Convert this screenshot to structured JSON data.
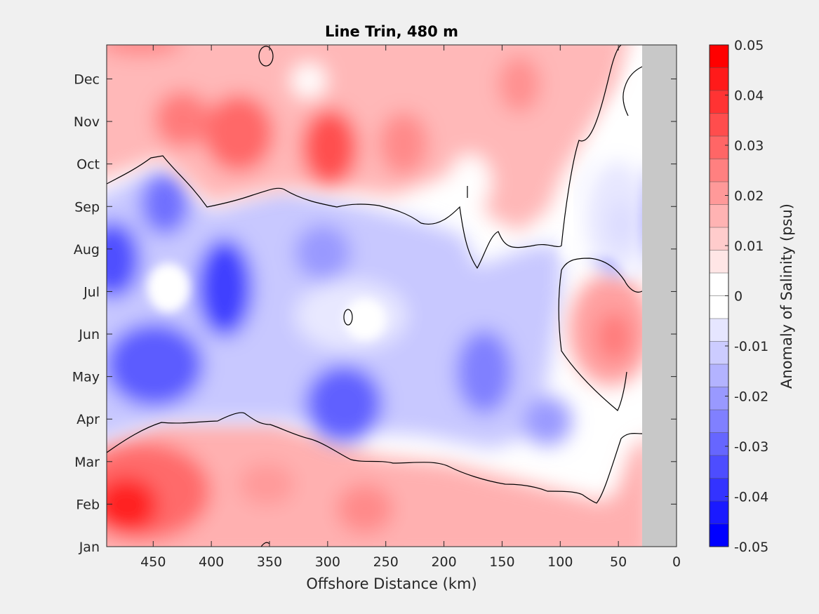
{
  "chart_data": {
    "type": "heatmap",
    "subtype": "filled-contour",
    "title": "Line Trin, 480 m",
    "xlabel": "Offshore Distance (km)",
    "ylabel": "",
    "x_reversed": true,
    "xlim": [
      490,
      0
    ],
    "xticks": [
      450,
      400,
      350,
      300,
      250,
      200,
      150,
      100,
      50,
      0
    ],
    "xtick_labels": [
      "450",
      "400",
      "350",
      "300",
      "250",
      "200",
      "150",
      "100",
      "50",
      "0"
    ],
    "y_months": [
      "Jan",
      "Feb",
      "Mar",
      "Apr",
      "May",
      "Jun",
      "Jul",
      "Aug",
      "Sep",
      "Oct",
      "Nov",
      "Dec"
    ],
    "no_data_region_km": [
      30,
      0
    ],
    "colorbar": {
      "label": "Anomaly of Salinity (psu)",
      "range": [
        -0.05,
        0.05
      ],
      "tick_values": [
        0.05,
        0.04,
        0.03,
        0.02,
        0.01,
        0,
        -0.01,
        -0.02,
        -0.03,
        -0.04,
        -0.05
      ],
      "tick_labels": [
        "0.05",
        "0.04",
        "0.03",
        "0.02",
        "0.01",
        "0",
        "-0.01",
        "-0.02",
        "-0.03",
        "-0.04",
        "-0.05"
      ],
      "levels": [
        0.05,
        0.045,
        0.04,
        0.035,
        0.03,
        0.025,
        0.02,
        0.015,
        0.01,
        0.005,
        0,
        -0.005,
        -0.01,
        -0.015,
        -0.02,
        -0.025,
        -0.03,
        -0.035,
        -0.04,
        -0.045,
        -0.05
      ],
      "colors": [
        "#ff0000",
        "#ff1a1a",
        "#ff3333",
        "#ff4d4d",
        "#ff6666",
        "#ff8080",
        "#ff9999",
        "#ffb3b3",
        "#ffcccc",
        "#ffe6e6",
        "#ffffff",
        "#ffffff",
        "#e6e6ff",
        "#ccccff",
        "#b3b3ff",
        "#9999ff",
        "#8080ff",
        "#6666ff",
        "#4d4dff",
        "#3333ff",
        "#1a1aff",
        "#0000ff"
      ]
    },
    "anomaly_bands": [
      {
        "months": [
          "Jan",
          "Mar"
        ],
        "sign": "positive",
        "peak_value": 0.045,
        "peak_x_km": 470,
        "peak_month": "Feb"
      },
      {
        "months": [
          "Apr",
          "Sep"
        ],
        "sign": "negative",
        "peak_value": -0.045,
        "peak_x_km": 390,
        "peak_month": "Jul"
      },
      {
        "months": [
          "Oct",
          "Dec"
        ],
        "sign": "positive",
        "peak_value": 0.03,
        "peak_x_km": 300,
        "peak_month": "Oct"
      }
    ],
    "grid": false,
    "colors": {
      "positive": "#ff0000",
      "negative": "#0000ff",
      "missing": "#c8c8c8",
      "contour": "#000000"
    }
  }
}
